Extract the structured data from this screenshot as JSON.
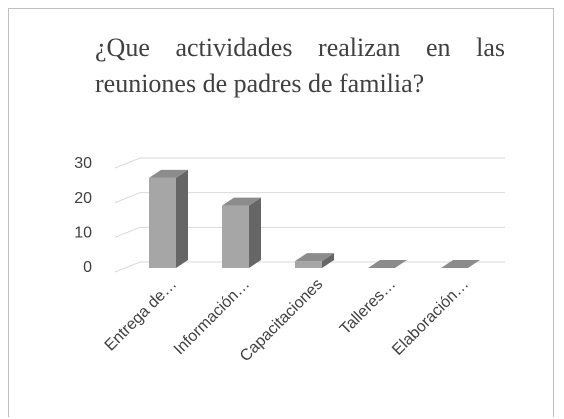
{
  "chart_data": {
    "type": "bar3d",
    "title": "¿Que actividades realizan en las reuniones de padres de familia?",
    "categories": [
      "Entrega de…",
      "Información…",
      "Capacitaciones",
      "Talleres…",
      "Elaboración…"
    ],
    "values": [
      26,
      18,
      2,
      0,
      0
    ],
    "color": "#a6a6a6",
    "ylim": [
      0,
      30
    ],
    "yticks": [
      0,
      10,
      20,
      30
    ],
    "grid": true
  }
}
